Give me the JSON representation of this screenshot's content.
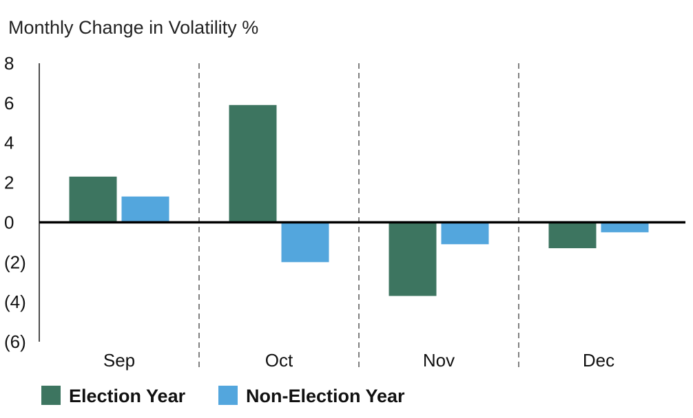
{
  "chart_data": {
    "type": "bar",
    "title": "Monthly Change in Volatility %",
    "categories": [
      "Sep",
      "Oct",
      "Nov",
      "Dec"
    ],
    "series": [
      {
        "name": "Election Year",
        "color": "#3d7560",
        "values": [
          2.3,
          5.9,
          -3.7,
          -1.3
        ]
      },
      {
        "name": "Non-Election Year",
        "color": "#53a6dd",
        "values": [
          1.3,
          -2.0,
          -1.1,
          -0.5
        ]
      }
    ],
    "ylim": [
      -6,
      8
    ],
    "yticks": [
      8,
      6,
      4,
      2,
      0,
      -2,
      -4,
      -6
    ],
    "ytick_labels": [
      "8",
      "6",
      "4",
      "2",
      "0",
      "(2)",
      "(4)",
      "(6)"
    ],
    "separators": "dashed vertical lines between months",
    "legend_position": "bottom-left",
    "grid": false
  }
}
